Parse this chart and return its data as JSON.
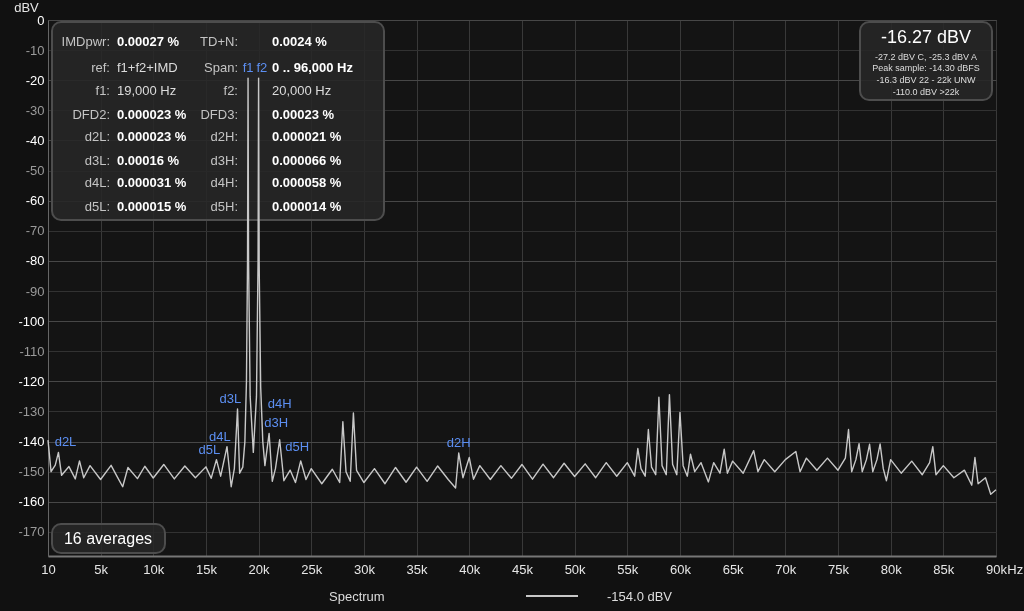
{
  "chart_data": {
    "type": "line",
    "ylabel": "dBV",
    "xlabel": "Hz",
    "x": [
      10,
      300,
      700,
      1000,
      1300,
      2000,
      2600,
      3000,
      3400,
      4000,
      5000,
      6000,
      6600,
      7100,
      7600,
      8500,
      9200,
      10000,
      11000,
      12000,
      13000,
      14000,
      15000,
      15500,
      16000,
      16400,
      17000,
      17400,
      17700,
      18000,
      18200,
      18500,
      18700,
      18850,
      18950,
      19000,
      19050,
      19200,
      19500,
      19800,
      19950,
      20000,
      20050,
      20200,
      20400,
      20600,
      21000,
      21300,
      21600,
      22000,
      22400,
      23000,
      23500,
      24000,
      24500,
      25000,
      26000,
      27000,
      27700,
      28000,
      28300,
      28700,
      29000,
      29300,
      30000,
      31000,
      32000,
      33000,
      34000,
      35000,
      36000,
      37000,
      38000,
      38700,
      39000,
      39400,
      40000,
      40400,
      41000,
      42000,
      43000,
      44000,
      45000,
      46000,
      47000,
      48000,
      49000,
      50000,
      51000,
      52000,
      53000,
      54000,
      55000,
      55700,
      56000,
      56300,
      56700,
      57000,
      57300,
      57700,
      58000,
      58300,
      58700,
      59000,
      59300,
      59700,
      60000,
      60300,
      60700,
      61000,
      61400,
      62000,
      62700,
      63200,
      63800,
      64200,
      64500,
      65000,
      66000,
      67000,
      67400,
      68000,
      69000,
      70000,
      71000,
      71400,
      72000,
      73000,
      74000,
      75000,
      75700,
      76000,
      76300,
      76700,
      77000,
      77300,
      77700,
      78000,
      78300,
      78700,
      79000,
      79300,
      79600,
      80000,
      81000,
      82000,
      83000,
      83700,
      84000,
      84300,
      85000,
      86000,
      87000,
      87700,
      88000,
      88300,
      89000,
      89500,
      90000
    ],
    "series": [
      {
        "name": "Spectrum",
        "color": "#c8c8c8",
        "values": [
          -139.5,
          -150,
          -147.8,
          -143.6,
          -151.2,
          -148.3,
          -152.4,
          -146.4,
          -152,
          -148,
          -152.6,
          -147.9,
          -151.8,
          -155,
          -148.6,
          -152.3,
          -148.2,
          -152.1,
          -147.6,
          -152.4,
          -148.1,
          -152,
          -148.4,
          -152.2,
          -146,
          -151.5,
          -141.7,
          -155,
          -149,
          -129.2,
          -150.5,
          -148.5,
          -140,
          -120,
          -80,
          -19.3,
          -80,
          -125,
          -143.6,
          -125,
          -80,
          -19.3,
          -80,
          -122,
          -140,
          -148,
          -137.3,
          -153.2,
          -149,
          -139.4,
          -153,
          -149.5,
          -153.6,
          -146.4,
          -152.6,
          -149,
          -154,
          -149.2,
          -153.6,
          -133.4,
          -150,
          -153.2,
          -130.5,
          -149.6,
          -153.6,
          -149,
          -154,
          -148.6,
          -153.5,
          -148.5,
          -153.2,
          -148.1,
          -152.6,
          -155.4,
          -143.8,
          -152,
          -145.3,
          -152.5,
          -148,
          -152.6,
          -148,
          -152.2,
          -147.6,
          -152.5,
          -147.5,
          -152,
          -147.2,
          -151.6,
          -147.4,
          -152,
          -147,
          -151.5,
          -147,
          -151.5,
          -142.3,
          -149,
          -151.5,
          -136,
          -148.5,
          -151,
          -125.3,
          -148,
          -151,
          -124.4,
          -147.5,
          -151,
          -130.3,
          -148,
          -151.5,
          -144.2,
          -150,
          -147,
          -153.4,
          -147,
          -150.5,
          -142.5,
          -150.5,
          -146.5,
          -150.5,
          -143,
          -150,
          -146,
          -150,
          -146,
          -143.3,
          -150,
          -145.5,
          -149.5,
          -145.5,
          -149.5,
          -145.5,
          -136,
          -150,
          -146,
          -140.7,
          -150,
          -146,
          -140.9,
          -150,
          -146,
          -140.8,
          -149,
          -153,
          -146,
          -150.5,
          -146.5,
          -151,
          -147,
          -141.7,
          -151,
          -148,
          -152,
          -149.5,
          -154.5,
          -145.3,
          -154,
          -152,
          -157.5,
          -156
        ]
      }
    ],
    "xlim": [
      10,
      90000
    ],
    "xticks": [
      10,
      {
        "value": 5000,
        "label": "5k"
      },
      {
        "value": 10000,
        "label": "10k"
      },
      {
        "value": 15000,
        "label": "15k"
      },
      {
        "value": 20000,
        "label": "20k"
      },
      {
        "value": 25000,
        "label": "25k"
      },
      {
        "value": 30000,
        "label": "30k"
      },
      {
        "value": 35000,
        "label": "35k"
      },
      {
        "value": 40000,
        "label": "40k"
      },
      {
        "value": 45000,
        "label": "45k"
      },
      {
        "value": 50000,
        "label": "50k"
      },
      {
        "value": 55000,
        "label": "55k"
      },
      {
        "value": 60000,
        "label": "60k"
      },
      {
        "value": 65000,
        "label": "65k"
      },
      {
        "value": 70000,
        "label": "70k"
      },
      {
        "value": 75000,
        "label": "75k"
      },
      {
        "value": 80000,
        "label": "80k"
      },
      {
        "value": 85000,
        "label": "85k"
      },
      {
        "value": 90000,
        "label": "90k"
      }
    ],
    "ylim": [
      -178,
      0
    ],
    "yticks": [
      0,
      -10,
      -20,
      -30,
      -40,
      -50,
      -60,
      -70,
      -80,
      -90,
      -100,
      -110,
      -120,
      -130,
      -140,
      -150,
      -160,
      -170
    ],
    "grid": true,
    "legend": "bottom",
    "annotations": [
      "IMDpwr: 0.00027 %",
      "TD+N: 0.0024 %",
      "ref: f1+f2+IMD",
      "Span: 0 .. 96,000 Hz",
      "f1: 19,000 Hz",
      "f2: 20,000 Hz",
      "DFD2: 0.000023 %",
      "DFD3: 0.00023 %",
      "d2L: 0.000023 %",
      "d2H: 0.000021 %",
      "d3L: 0.00016 %",
      "d3H: 0.000066 %",
      "d4L: 0.000031 %",
      "d4H: 0.000058 %",
      "d5L: 0.000015 %",
      "d5H: 0.000014 %",
      "-16.27 dBV",
      "-27.2 dBV C, -25.3 dBV A",
      "Peak sample: -14.30 dBFS",
      "-16.3 dBV 22 - 22k UNW",
      "-110.0 dBV >22k",
      "16 averages",
      "-154.0 dBV",
      {
        "text": "f1",
        "x": 19000,
        "y": -19.3
      },
      {
        "text": "f2",
        "x": 20000,
        "y": -19.3
      },
      {
        "text": "d2L",
        "x": 1000,
        "y": -143.6
      },
      {
        "text": "d3L",
        "x": 18000,
        "y": -129.2
      },
      {
        "text": "d4L",
        "x": 17000,
        "y": -141.7
      },
      {
        "text": "d5L",
        "x": 16000,
        "y": -146
      },
      {
        "text": "d3H",
        "x": 21000,
        "y": -137.3
      },
      {
        "text": "d4H",
        "x": 22000,
        "y": -139.4
      },
      {
        "text": "d5H",
        "x": 23000,
        "y": -149.5
      },
      {
        "text": "d2H",
        "x": 39000,
        "y": -143.8
      }
    ]
  }
}
